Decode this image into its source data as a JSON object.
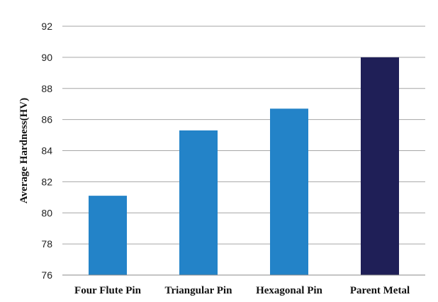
{
  "chart_data": {
    "type": "bar",
    "title": "",
    "xlabel": "",
    "ylabel": "Average Hardness(HV)",
    "categories": [
      "Four Flute Pin",
      "Triangular Pin",
      "Hexagonal Pin",
      "Parent Metal"
    ],
    "values": [
      81.1,
      85.3,
      86.7,
      90.0
    ],
    "colors": [
      "#2383c8",
      "#2383c8",
      "#2383c8",
      "#1f1f57"
    ],
    "ylim": [
      76,
      92
    ],
    "yticks": [
      76,
      78,
      80,
      82,
      84,
      86,
      88,
      90,
      92
    ],
    "grid": true,
    "legend": "none"
  }
}
